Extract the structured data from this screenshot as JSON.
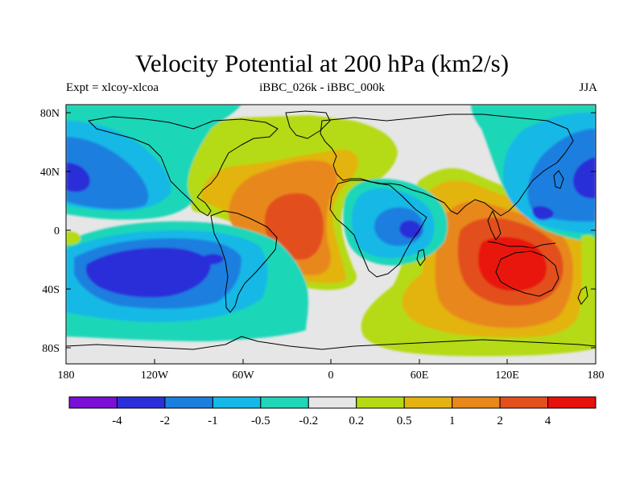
{
  "title": "Velocity Potential at 200 hPa (km2/s)",
  "subtitle_left": "Expt = xlcoy-xlcoa",
  "subtitle_center": "iBBC_026k - iBBC_000k",
  "subtitle_right": "JJA",
  "lat_axis_labels": [
    "80N",
    "40N",
    "0",
    "40S",
    "80S"
  ],
  "lon_axis_labels": [
    "180",
    "120W",
    "60W",
    "0",
    "60E",
    "120E",
    "180"
  ],
  "colorbar": {
    "colors": [
      "#7a10d6",
      "#2b2fd9",
      "#1b7fdf",
      "#15b8e6",
      "#1fd6b8",
      "#e6e6e6",
      "#b5da14",
      "#e3b411",
      "#e8881a",
      "#e3501e",
      "#e8120d"
    ],
    "labels": [
      "-4",
      "-2",
      "-1",
      "-0.5",
      "-0.2",
      "0.2",
      "0.5",
      "1",
      "2",
      "4"
    ]
  },
  "colors": {
    "background": "#e6e6e6",
    "coast": "#000000"
  }
}
